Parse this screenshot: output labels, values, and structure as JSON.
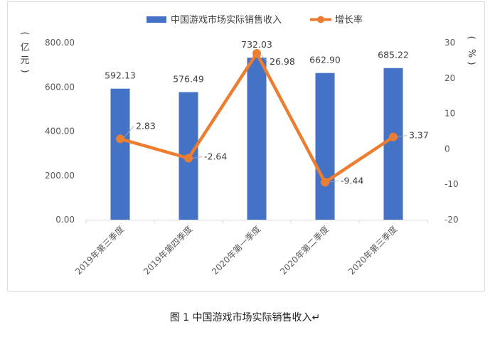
{
  "chart_data": {
    "type": "bar",
    "categories": [
      "2019年第三季度",
      "2019年第四季度",
      "2020年第一季度",
      "2020年第二季度",
      "2020年第三季度"
    ],
    "series": [
      {
        "name": "中国游戏市场实际销售收入",
        "type": "bar",
        "axis": "left",
        "values": [
          592.13,
          576.49,
          732.03,
          662.9,
          685.22
        ],
        "labels": [
          "592.13",
          "576.49",
          "732.03",
          "662.90",
          "685.22"
        ],
        "color": "#4472C4"
      },
      {
        "name": "增长率",
        "type": "line",
        "axis": "right",
        "values": [
          2.83,
          -2.64,
          26.98,
          -9.44,
          3.37
        ],
        "labels": [
          "2.83",
          "-2.64",
          "26.98",
          "-9.44",
          "3.37"
        ],
        "color": "#ED7D31"
      }
    ],
    "ylabel": "亿元",
    "y2label": "%",
    "ylim": [
      0,
      800
    ],
    "y2lim": [
      -20,
      30
    ],
    "yticks": [
      "0.00",
      "200.00",
      "400.00",
      "600.00",
      "800.00"
    ],
    "y2ticks": [
      "30",
      "20",
      "10",
      "0",
      "-10",
      "-20"
    ],
    "legend_position": "top",
    "grid": false
  },
  "caption": "图 1  中国游戏市场实际销售收入↵"
}
